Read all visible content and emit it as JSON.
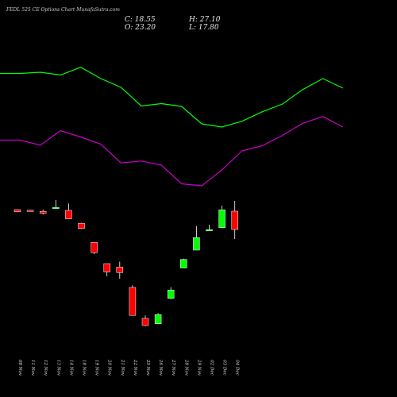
{
  "header": {
    "title": "FEDL 525 CE Options  Chart MunafaSutra.com",
    "close_label": "C: 18.55",
    "open_label": "O: 23.20",
    "high_label": "H: 27.10",
    "low_label": "L: 17.80"
  },
  "colors": {
    "background": "#000000",
    "upper_line": "#00ff00",
    "lower_line": "#cc00cc",
    "bull": "#00ff00",
    "bear": "#ff0000",
    "wick": "#ffffff",
    "text": "#e0e0e0"
  },
  "chart_data": {
    "type": "candlestick",
    "title": "FEDL 525 CE Options  Chart MunafaSutra.com",
    "categories": [
      "08 Nov",
      "11 Nov",
      "12 Nov",
      "13 Nov",
      "14 Nov",
      "18 Nov",
      "19 Nov",
      "20 Nov",
      "21 Nov",
      "22 Nov",
      "25 Nov",
      "26 Nov",
      "27 Nov",
      "28 Nov",
      "29 Nov",
      "02 Dec",
      "03 Dec",
      "04 Dec"
    ],
    "candles": [
      {
        "open": 32.0,
        "high": 32.3,
        "low": 28.7,
        "close": 29.3
      },
      {
        "open": 31.2,
        "high": 31.6,
        "low": 29.7,
        "close": 30.7
      },
      {
        "open": 29.8,
        "high": 32.2,
        "low": 25.8,
        "close": 27.5
      },
      {
        "open": 33.2,
        "high": 44.0,
        "low": 33.2,
        "close": 34.8
      },
      {
        "open": 31.0,
        "high": 39.8,
        "low": 21.3,
        "close": 20.3
      },
      {
        "open": 14.8,
        "high": 15.3,
        "low": 7.8,
        "close": 8.3
      },
      {
        "open": -9.2,
        "high": -9.2,
        "low": -24.0,
        "close": -22.2
      },
      {
        "open": -36.0,
        "high": -36.0,
        "low": -52.0,
        "close": -46.5
      },
      {
        "open": -40.3,
        "high": -33.5,
        "low": -55.2,
        "close": -47.3
      },
      {
        "open": -66.0,
        "high": -63.3,
        "low": -101.2,
        "close": -101.2
      },
      {
        "open": -105.0,
        "high": -101.2,
        "low": -114.7,
        "close": -114.0
      },
      {
        "open": -111.8,
        "high": -98.3,
        "low": -111.8,
        "close": -100.2
      },
      {
        "open": -79.8,
        "high": -65.7,
        "low": -80.8,
        "close": -69.3
      },
      {
        "open": -41.5,
        "high": -29.8,
        "low": -41.5,
        "close": -30.7
      },
      {
        "open": -19.0,
        "high": 11.0,
        "low": -19.0,
        "close": -3.2
      },
      {
        "open": 6.8,
        "high": 13.0,
        "low": 5.0,
        "close": 6.8
      },
      {
        "open": 9.2,
        "high": 37.0,
        "low": 9.2,
        "close": 31.8
      },
      {
        "open": 30.0,
        "high": 43.0,
        "low": -5.0,
        "close": 7.0
      }
    ],
    "overlay_upper": [
      92.5,
      92.5,
      91.0,
      94.5,
      84.7,
      99.0,
      110.0,
      133.5,
      130.5,
      134.0,
      156.0,
      160.0,
      152.7,
      140.7,
      131.0,
      112.8,
      99.0,
      111.0
    ],
    "overlay_lower": [
      176.5,
      176.5,
      182.8,
      164.5,
      172.5,
      181.7,
      205.2,
      202.8,
      208.0,
      231.5,
      234.0,
      214.0,
      190.0,
      183.5,
      170.5,
      155.3,
      146.8,
      160.0
    ]
  }
}
